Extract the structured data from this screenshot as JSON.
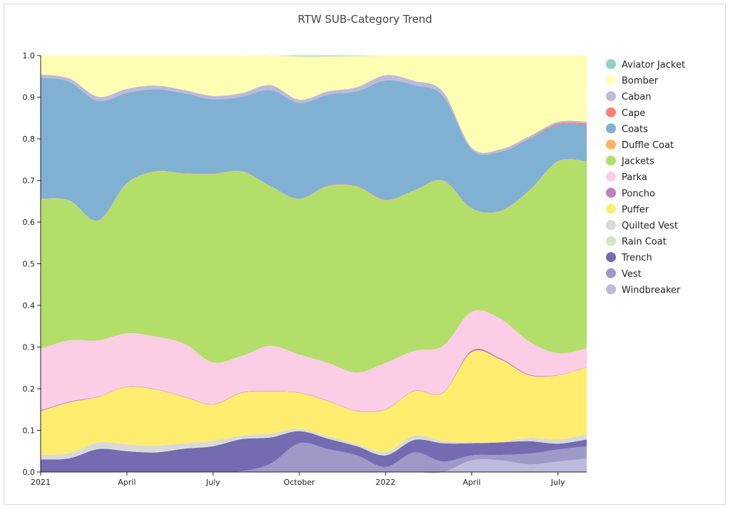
{
  "chart_data": {
    "type": "area",
    "stacked": true,
    "normalized": true,
    "title": "RTW SUB-Category Trend",
    "xlabel": "",
    "ylabel": "",
    "ylim": [
      0,
      1
    ],
    "grid": false,
    "legend_position": "right",
    "x": [
      "2021-01",
      "2021-02",
      "2021-03",
      "2021-04",
      "2021-05",
      "2021-06",
      "2021-07",
      "2021-08",
      "2021-09",
      "2021-10",
      "2021-11",
      "2021-12",
      "2022-01",
      "2022-02",
      "2022-03",
      "2022-04",
      "2022-05",
      "2022-06",
      "2022-07",
      "2022-08"
    ],
    "x_tick_labels": [
      "2021",
      "April",
      "July",
      "October",
      "2022",
      "April",
      "July"
    ],
    "x_tick_values": [
      "2021-01",
      "2021-04",
      "2021-07",
      "2021-10",
      "2022-01",
      "2022-04",
      "2022-07"
    ],
    "y_tick_labels": [
      "0.0",
      "0.1",
      "0.2",
      "0.3",
      "0.4",
      "0.5",
      "0.6",
      "0.7",
      "0.8",
      "0.9",
      "1.0"
    ],
    "series": [
      {
        "name": "Aviator Jacket",
        "color": "#8dd3c7",
        "values": [
          0,
          0,
          0,
          0,
          0,
          0,
          0,
          0,
          0,
          0.002,
          0.002,
          0.001,
          0,
          0,
          0,
          0,
          0,
          0,
          0,
          0
        ]
      },
      {
        "name": "Bomber",
        "color": "#ffffb3",
        "values": [
          0.045,
          0.055,
          0.099,
          0.08,
          0.072,
          0.083,
          0.097,
          0.09,
          0.071,
          0.104,
          0.084,
          0.075,
          0.047,
          0.061,
          0.087,
          0.221,
          0.225,
          0.194,
          0.159,
          0.159
        ]
      },
      {
        "name": "Caban",
        "color": "#bebada",
        "values": [
          0.008,
          0.008,
          0.01,
          0.01,
          0.009,
          0.008,
          0.008,
          0.009,
          0.012,
          0.008,
          0.008,
          0.01,
          0.013,
          0.01,
          0.01,
          0.005,
          0.006,
          0.005,
          0.004,
          0.004
        ]
      },
      {
        "name": "Cape",
        "color": "#fb8072",
        "values": [
          0,
          0,
          0,
          0,
          0,
          0,
          0,
          0,
          0,
          0,
          0,
          0,
          0,
          0,
          0,
          0,
          0,
          0.001,
          0.003,
          0.003
        ]
      },
      {
        "name": "Coats",
        "color": "#80b1d3",
        "values": [
          0.291,
          0.285,
          0.287,
          0.217,
          0.197,
          0.192,
          0.179,
          0.179,
          0.231,
          0.23,
          0.219,
          0.228,
          0.287,
          0.253,
          0.203,
          0.141,
          0.142,
          0.124,
          0.088,
          0.088
        ]
      },
      {
        "name": "Duffle Coat",
        "color": "#fdb462",
        "values": [
          0.001,
          0.001,
          0.001,
          0.001,
          0.001,
          0.001,
          0.001,
          0.001,
          0.001,
          0.001,
          0.002,
          0.002,
          0.002,
          0.001,
          0.001,
          0.001,
          0.001,
          0.001,
          0.001,
          0.001
        ]
      },
      {
        "name": "Jackets",
        "color": "#b3de69",
        "values": [
          0.359,
          0.335,
          0.287,
          0.359,
          0.396,
          0.408,
          0.452,
          0.442,
          0.382,
          0.373,
          0.423,
          0.445,
          0.389,
          0.384,
          0.396,
          0.247,
          0.258,
          0.362,
          0.46,
          0.448
        ]
      },
      {
        "name": "Parka",
        "color": "#fccde5",
        "values": [
          0.148,
          0.147,
          0.135,
          0.128,
          0.126,
          0.127,
          0.1,
          0.088,
          0.109,
          0.091,
          0.091,
          0.092,
          0.111,
          0.096,
          0.112,
          0.093,
          0.095,
          0.079,
          0.052,
          0.045
        ]
      },
      {
        "name": "Poncho",
        "color": "#bc80bd",
        "values": [
          0.002,
          0.002,
          0.001,
          0.001,
          0.001,
          0.001,
          0.001,
          0.001,
          0.001,
          0.001,
          0.001,
          0.001,
          0.001,
          0.001,
          0.001,
          0.004,
          0.003,
          0.002,
          0.001,
          0.001
        ]
      },
      {
        "name": "Puffer",
        "color": "#ffed6f",
        "values": [
          0.105,
          0.122,
          0.109,
          0.138,
          0.135,
          0.111,
          0.087,
          0.103,
          0.101,
          0.086,
          0.085,
          0.079,
          0.102,
          0.107,
          0.115,
          0.217,
          0.198,
          0.15,
          0.154,
          0.16
        ]
      },
      {
        "name": "Quilted Vest",
        "color": "#d9d9d9",
        "values": [
          0.011,
          0.012,
          0.014,
          0.014,
          0.014,
          0.011,
          0.011,
          0.006,
          0.007,
          0.004,
          0.004,
          0.004,
          0.006,
          0.007,
          0.006,
          0.002,
          0.001,
          0.008,
          0.01,
          0.013
        ]
      },
      {
        "name": "Rain Coat",
        "color": "#ccebc5",
        "values": [
          0,
          0,
          0.002,
          0.002,
          0.002,
          0.002,
          0.002,
          0.002,
          0.002,
          0.002,
          0.001,
          0.001,
          0.002,
          0.003,
          0,
          0,
          0,
          0,
          0,
          0
        ]
      },
      {
        "name": "Trench",
        "color": "#756bb1",
        "values": [
          0.03,
          0.033,
          0.055,
          0.05,
          0.047,
          0.056,
          0.062,
          0.077,
          0.063,
          0.029,
          0.025,
          0.022,
          0.028,
          0.03,
          0.044,
          0.029,
          0.03,
          0.03,
          0.014,
          0.016
        ]
      },
      {
        "name": "Vest",
        "color": "#9e9ac8",
        "values": [
          0,
          0,
          0,
          0,
          0,
          0,
          0,
          0.002,
          0.02,
          0.069,
          0.055,
          0.04,
          0.012,
          0.047,
          0.025,
          0.012,
          0.013,
          0.026,
          0.029,
          0.03
        ]
      },
      {
        "name": "Windbreaker",
        "color": "#bcbddc",
        "values": [
          0,
          0,
          0,
          0,
          0,
          0,
          0,
          0,
          0,
          0,
          0,
          0,
          0,
          0,
          0,
          0.028,
          0.028,
          0.018,
          0.025,
          0.032
        ]
      }
    ]
  }
}
